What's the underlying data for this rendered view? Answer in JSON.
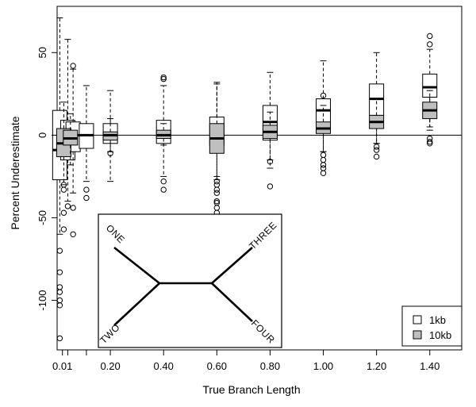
{
  "chart_data": {
    "type": "boxplot",
    "xlabel": "True Branch Length",
    "ylabel": "Percent Underestimate",
    "xlim": [
      0.0,
      1.52
    ],
    "ylim": [
      -130,
      78
    ],
    "xticks": [
      {
        "v": 0.02,
        "label": "0.01"
      },
      {
        "v": 0.2,
        "label": "0.20"
      },
      {
        "v": 0.4,
        "label": "0.40"
      },
      {
        "v": 0.6,
        "label": "0.60"
      },
      {
        "v": 0.8,
        "label": "0.80"
      },
      {
        "v": 1.0,
        "label": "1.00"
      },
      {
        "v": 1.2,
        "label": "1.20"
      },
      {
        "v": 1.4,
        "label": "1.40"
      }
    ],
    "minor_xticks": [
      0.04,
      0.11
    ],
    "yticks": [
      {
        "v": 50,
        "label": "50"
      },
      {
        "v": 0,
        "label": "0"
      },
      {
        "v": -50,
        "label": "-50"
      },
      {
        "v": -100,
        "label": "-100"
      }
    ],
    "reference_line": 0,
    "series": [
      {
        "name": "1kb",
        "fill": "#ffffff",
        "boxes": [
          {
            "x": 0.01,
            "wlo": -60,
            "q1": -27,
            "med": -9,
            "q3": 15,
            "whi": 71,
            "out": [
              -70,
              -83,
              -92,
              -95,
              -100,
              -103,
              -123
            ]
          },
          {
            "x": 0.04,
            "wlo": -40,
            "q1": -15,
            "med": -1,
            "q3": 9,
            "whi": 58,
            "out": [
              -43
            ]
          },
          {
            "x": 0.06,
            "wlo": -35,
            "q1": -10,
            "med": 0,
            "q3": 8,
            "whi": 40,
            "out": [
              42,
              -44,
              -60
            ]
          },
          {
            "x": 0.11,
            "wlo": -28,
            "q1": -8,
            "med": 0,
            "q3": 7,
            "whi": 30,
            "out": [
              -33,
              -38
            ]
          },
          {
            "x": 0.2,
            "wlo": -28,
            "q1": -5,
            "med": 0,
            "q3": 7,
            "whi": 27,
            "out": []
          },
          {
            "x": 0.4,
            "wlo": -25,
            "q1": -5,
            "med": 1,
            "q3": 9,
            "whi": 30,
            "out": [
              34,
              35,
              -28,
              -33
            ]
          },
          {
            "x": 0.6,
            "wlo": -25,
            "q1": -6,
            "med": 1,
            "q3": 11,
            "whi": 32,
            "out": [
              -28,
              -33,
              -40,
              -44
            ]
          },
          {
            "x": 0.8,
            "wlo": -20,
            "q1": -3,
            "med": 8,
            "q3": 18,
            "whi": 38,
            "out": [
              -31
            ]
          },
          {
            "x": 1.0,
            "wlo": -10,
            "q1": 3,
            "med": 15,
            "q3": 22,
            "whi": 45,
            "out": [
              24,
              -12,
              -15,
              -18,
              -20,
              -23
            ]
          },
          {
            "x": 1.2,
            "wlo": -5,
            "q1": 12,
            "med": 22,
            "q3": 31,
            "whi": 50,
            "out": [
              -9,
              -13
            ]
          },
          {
            "x": 1.4,
            "wlo": 5,
            "q1": 23,
            "med": 29,
            "q3": 37,
            "whi": 52,
            "out": [
              60,
              55,
              -2,
              -5
            ]
          }
        ]
      },
      {
        "name": "10kb",
        "fill": "#bfbfbf",
        "boxes": [
          {
            "x": 0.025,
            "wlo": -30,
            "q1": -13,
            "med": -5,
            "q3": 4,
            "whi": 20,
            "out": [
              -30,
              -33,
              -47,
              -57
            ]
          },
          {
            "x": 0.05,
            "wlo": -18,
            "q1": -6,
            "med": -2,
            "q3": 3,
            "whi": 13,
            "out": []
          },
          {
            "x": 0.2,
            "wlo": -10,
            "q1": -3,
            "med": 0,
            "q3": 2,
            "whi": 10,
            "out": [
              -11
            ]
          },
          {
            "x": 0.4,
            "wlo": -6,
            "q1": -2,
            "med": 0,
            "q3": 3,
            "whi": 7,
            "out": []
          },
          {
            "x": 0.6,
            "wlo": -27,
            "q1": -11,
            "med": -2,
            "q3": 7,
            "whi": 31,
            "out": [
              -30,
              -35,
              -41,
              -47
            ]
          },
          {
            "x": 0.8,
            "wlo": -15,
            "q1": -2,
            "med": 2,
            "q3": 6,
            "whi": 14,
            "out": [
              -16
            ]
          },
          {
            "x": 1.0,
            "wlo": -10,
            "q1": 1,
            "med": 4,
            "q3": 8,
            "whi": 18,
            "out": []
          },
          {
            "x": 1.2,
            "wlo": -5,
            "q1": 4,
            "med": 8,
            "q3": 12,
            "whi": 22,
            "out": [
              -7
            ]
          },
          {
            "x": 1.4,
            "wlo": 3,
            "q1": 10,
            "med": 15,
            "q3": 20,
            "whi": 27,
            "out": [
              -4
            ]
          }
        ]
      }
    ],
    "legend": {
      "position": "bottom-right",
      "items": [
        "1kb",
        "10kb"
      ]
    },
    "inset": {
      "type": "tree",
      "labels": [
        "ONE",
        "TWO",
        "THREE",
        "FOUR"
      ],
      "position": "bottom-left"
    }
  }
}
